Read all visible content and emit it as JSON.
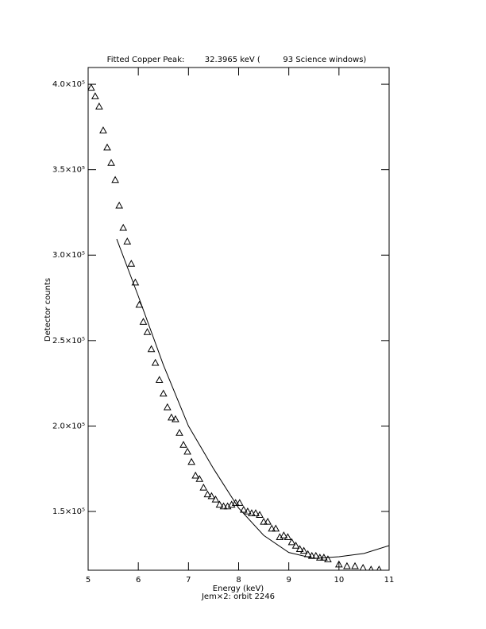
{
  "chart_data": {
    "type": "scatter",
    "title": "Fitted Copper Peak:        32.3965 keV (         93 Science windows)",
    "x_label": "Energy (keV)",
    "subtitle": "Jem×2: orbit 2246",
    "y_label": "Detector counts",
    "xlim": [
      5,
      11
    ],
    "ylim": [
      115600,
      409800
    ],
    "xticks": [
      5,
      6,
      7,
      8,
      9,
      10,
      11
    ],
    "yticks": [
      {
        "value": 150000,
        "label": "1.5×10⁵"
      },
      {
        "value": 200000,
        "label": "2.0×10⁵"
      },
      {
        "value": 250000,
        "label": "2.5×10⁵"
      },
      {
        "value": 300000,
        "label": "3.0×10⁵"
      },
      {
        "value": 350000,
        "label": "3.5×10⁵"
      },
      {
        "value": 400000,
        "label": "4.0×10⁵"
      }
    ],
    "series": [
      {
        "marker": "triangle",
        "color": "#000000",
        "x": [
          5.06,
          5.14,
          5.22,
          5.3,
          5.38,
          5.46,
          5.54,
          5.62,
          5.7,
          5.78,
          5.86,
          5.94,
          6.02,
          6.1,
          6.18,
          6.26,
          6.34,
          6.42,
          6.5,
          6.58,
          6.66,
          6.74,
          6.82,
          6.9,
          6.98,
          7.06,
          7.14,
          7.22,
          7.3,
          7.38,
          7.46,
          7.54,
          7.62,
          7.7,
          7.78,
          7.86,
          7.94,
          8.02,
          8.1,
          8.18,
          8.26,
          8.34,
          8.42,
          8.5,
          8.58,
          8.66,
          8.74,
          8.82,
          8.9,
          8.98,
          9.06,
          9.14,
          9.22,
          9.3,
          9.38,
          9.46,
          9.54,
          9.62,
          9.7,
          9.78,
          10.0,
          10.16,
          10.32,
          10.48,
          10.64,
          10.8
        ],
        "values": [
          398000,
          393000,
          387000,
          373000,
          363000,
          354000,
          344000,
          329000,
          316000,
          308000,
          295000,
          284000,
          271000,
          261000,
          255000,
          245000,
          237000,
          227000,
          219000,
          211000,
          205000,
          204000,
          196000,
          189000,
          185000,
          179000,
          171000,
          169000,
          164000,
          160000,
          159000,
          157000,
          154000,
          153000,
          153000,
          154000,
          155000,
          155000,
          151000,
          150000,
          149000,
          149000,
          148000,
          144000,
          144000,
          140000,
          140000,
          135000,
          136000,
          135000,
          132000,
          130000,
          128000,
          127000,
          125000,
          124000,
          124000,
          123000,
          123000,
          122000,
          119000,
          118000,
          118000,
          117000,
          116000,
          116000
        ]
      },
      {
        "marker": "line",
        "color": "#000000",
        "x": [
          5.57,
          6.0,
          6.5,
          7.0,
          7.5,
          8.0,
          8.5,
          9.0,
          9.5,
          10.0,
          10.5,
          11.0
        ],
        "values": [
          309400,
          276000,
          235700,
          200000,
          175000,
          152000,
          136000,
          126000,
          122500,
          123500,
          125400,
          130000
        ]
      }
    ]
  }
}
